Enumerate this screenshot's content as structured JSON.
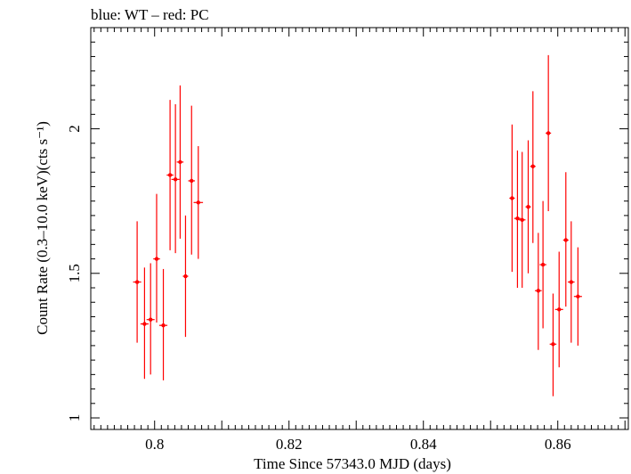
{
  "chart_data": {
    "type": "scatter",
    "title": "blue: WT – red: PC",
    "xlabel": "Time Since 57343.0 MJD (days)",
    "ylabel": "Count Rate (0.3–10.0 keV)(cts s⁻¹)",
    "xlim": [
      0.7905,
      0.8705
    ],
    "ylim": [
      0.96,
      2.35
    ],
    "xticks": [
      {
        "value": 0.8,
        "label": "0.8"
      },
      {
        "value": 0.82,
        "label": "0.82"
      },
      {
        "value": 0.84,
        "label": "0.84"
      },
      {
        "value": 0.86,
        "label": "0.86"
      }
    ],
    "yticks": [
      {
        "value": 1.0,
        "label": "1"
      },
      {
        "value": 1.5,
        "label": "1.5"
      },
      {
        "value": 2.0,
        "label": "2"
      }
    ],
    "grid": false,
    "series": [
      {
        "color": "#ff0000",
        "points": [
          {
            "x": 0.7974,
            "y": 1.47,
            "xerr": 0.0006,
            "ylo": 1.26,
            "yhi": 1.68
          },
          {
            "x": 0.7985,
            "y": 1.325,
            "xerr": 0.0006,
            "ylo": 1.135,
            "yhi": 1.52
          },
          {
            "x": 0.7994,
            "y": 1.34,
            "xerr": 0.0006,
            "ylo": 1.15,
            "yhi": 1.535
          },
          {
            "x": 0.8003,
            "y": 1.55,
            "xerr": 0.0005,
            "ylo": 1.33,
            "yhi": 1.775
          },
          {
            "x": 0.8013,
            "y": 1.32,
            "xerr": 0.0006,
            "ylo": 1.13,
            "yhi": 1.515
          },
          {
            "x": 0.8023,
            "y": 1.84,
            "xerr": 0.0005,
            "ylo": 1.58,
            "yhi": 2.1
          },
          {
            "x": 0.8031,
            "y": 1.825,
            "xerr": 0.0006,
            "ylo": 1.57,
            "yhi": 2.085
          },
          {
            "x": 0.8038,
            "y": 1.885,
            "xerr": 0.0005,
            "ylo": 1.62,
            "yhi": 2.15
          },
          {
            "x": 0.8046,
            "y": 1.49,
            "xerr": 0.0004,
            "ylo": 1.28,
            "yhi": 1.7
          },
          {
            "x": 0.8055,
            "y": 1.82,
            "xerr": 0.0005,
            "ylo": 1.565,
            "yhi": 2.08
          },
          {
            "x": 0.8065,
            "y": 1.745,
            "xerr": 0.0007,
            "ylo": 1.55,
            "yhi": 1.94
          },
          {
            "x": 0.8532,
            "y": 1.76,
            "xerr": 0.0004,
            "ylo": 1.505,
            "yhi": 2.015
          },
          {
            "x": 0.854,
            "y": 1.69,
            "xerr": 0.0005,
            "ylo": 1.45,
            "yhi": 1.925
          },
          {
            "x": 0.8547,
            "y": 1.685,
            "xerr": 0.0005,
            "ylo": 1.45,
            "yhi": 1.92
          },
          {
            "x": 0.8556,
            "y": 1.73,
            "xerr": 0.0004,
            "ylo": 1.5,
            "yhi": 1.96
          },
          {
            "x": 0.8563,
            "y": 1.87,
            "xerr": 0.0004,
            "ylo": 1.605,
            "yhi": 2.13
          },
          {
            "x": 0.8571,
            "y": 1.44,
            "xerr": 0.0005,
            "ylo": 1.235,
            "yhi": 1.64
          },
          {
            "x": 0.8578,
            "y": 1.53,
            "xerr": 0.0005,
            "ylo": 1.31,
            "yhi": 1.75
          },
          {
            "x": 0.8586,
            "y": 1.985,
            "xerr": 0.0004,
            "ylo": 1.715,
            "yhi": 2.255
          },
          {
            "x": 0.8593,
            "y": 1.255,
            "xerr": 0.0005,
            "ylo": 1.075,
            "yhi": 1.43
          },
          {
            "x": 0.8602,
            "y": 1.375,
            "xerr": 0.0006,
            "ylo": 1.175,
            "yhi": 1.575
          },
          {
            "x": 0.8612,
            "y": 1.615,
            "xerr": 0.0004,
            "ylo": 1.385,
            "yhi": 1.85
          },
          {
            "x": 0.862,
            "y": 1.47,
            "xerr": 0.0005,
            "ylo": 1.26,
            "yhi": 1.68
          },
          {
            "x": 0.863,
            "y": 1.42,
            "xerr": 0.0006,
            "ylo": 1.25,
            "yhi": 1.59
          }
        ]
      }
    ]
  }
}
